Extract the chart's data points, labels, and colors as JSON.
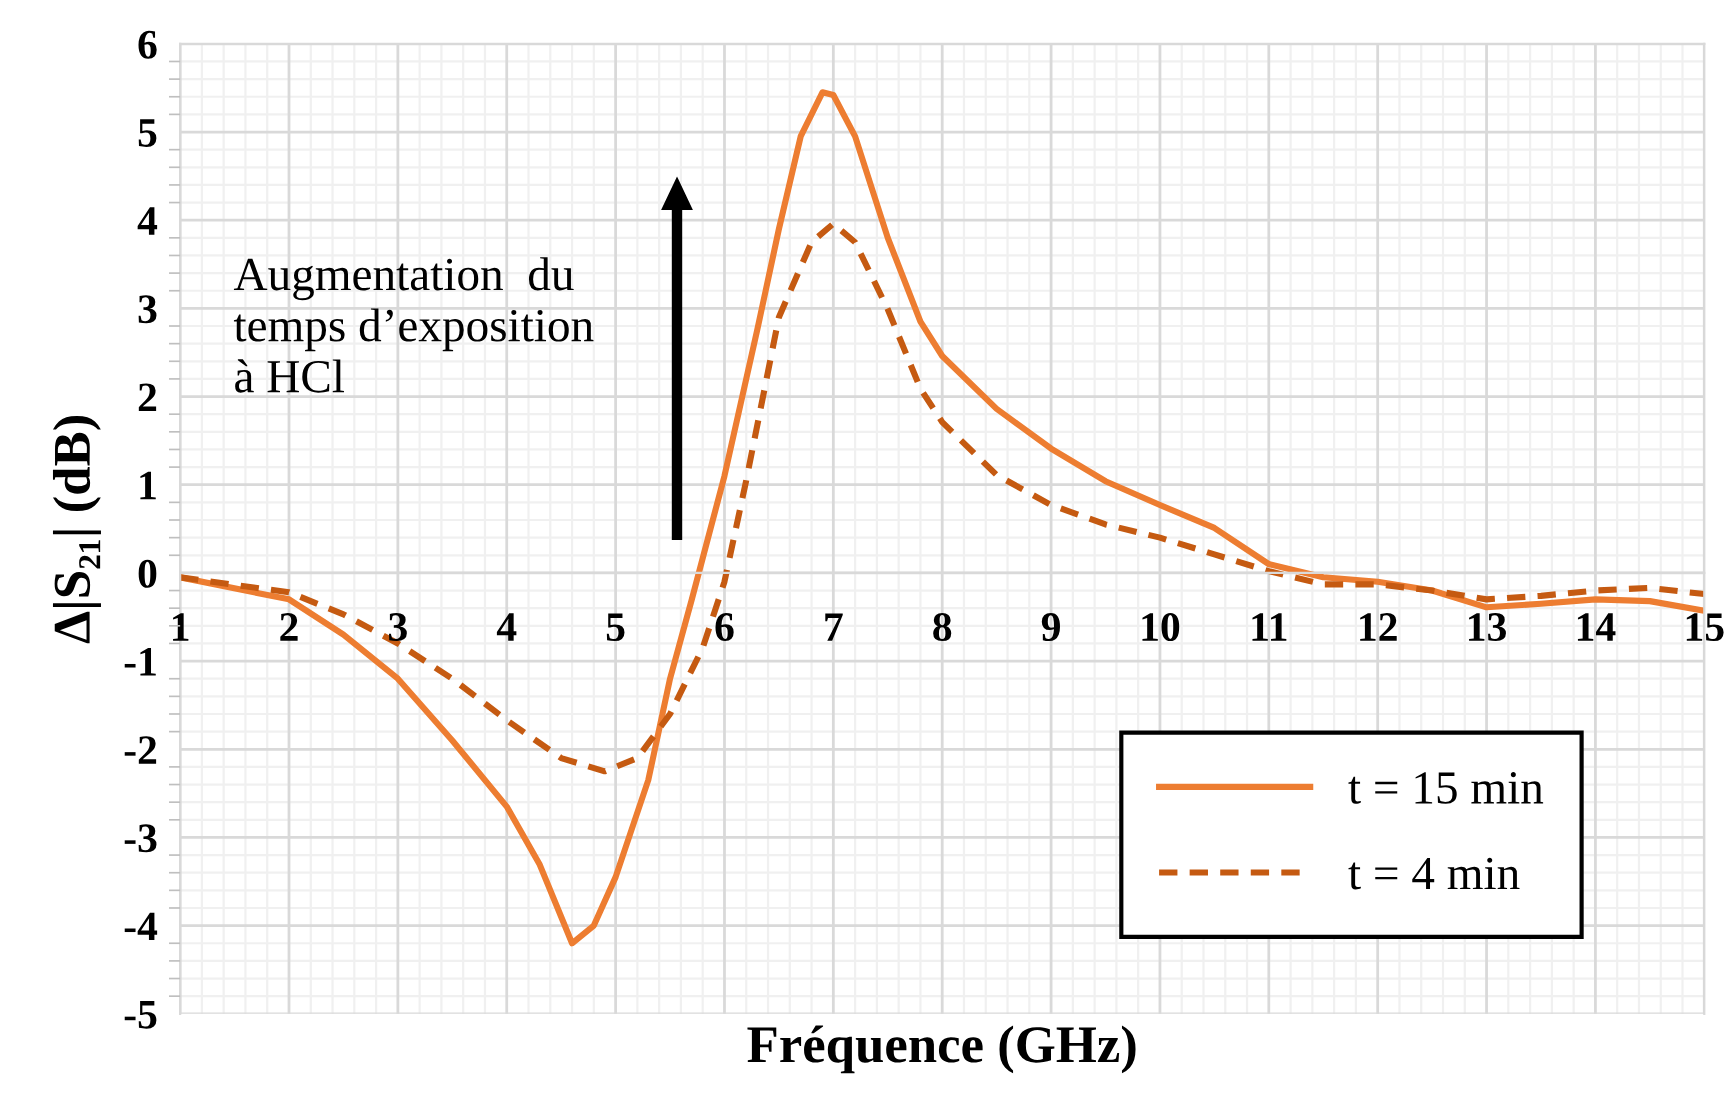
{
  "chart_data": {
    "type": "line",
    "xlabel": "Fréquence (GHz)",
    "ylabel": "Δ|S₂₁| (dB)",
    "xlim": [
      1,
      15
    ],
    "xticks": [
      1,
      2,
      3,
      4,
      5,
      6,
      7,
      8,
      9,
      10,
      11,
      12,
      13,
      14,
      15
    ],
    "ylim": [
      -5,
      6
    ],
    "yticks": [
      -5,
      -4,
      -3,
      -2,
      -1,
      0,
      1,
      2,
      3,
      4,
      5,
      6
    ],
    "grid": true,
    "legend": "bottom right",
    "marker": "none",
    "annotations": [
      "Augmentation  du\ntemps d’exposition\nà HCl"
    ],
    "series": [
      {
        "name": "t = 15 min",
        "color": "#ed7d31",
        "line_style": "solid",
        "x": [
          1,
          2,
          2.5,
          3,
          3.5,
          4,
          4.3,
          4.6,
          4.8,
          5,
          5.3,
          5.5,
          5.7,
          6,
          6.3,
          6.5,
          6.7,
          6.9,
          7,
          7.2,
          7.5,
          7.8,
          8,
          8.5,
          9,
          9.5,
          10,
          10.5,
          11,
          11.5,
          12,
          12.5,
          13,
          13.5,
          14,
          14.5,
          15
        ],
        "values": [
          -0.05,
          -0.3,
          -0.7,
          -1.2,
          -1.9,
          -2.65,
          -3.3,
          -4.2,
          -4.0,
          -3.45,
          -2.35,
          -1.2,
          -0.3,
          1.1,
          2.75,
          3.9,
          4.95,
          5.45,
          5.42,
          4.95,
          3.8,
          2.85,
          2.46,
          1.86,
          1.41,
          1.04,
          0.77,
          0.51,
          0.1,
          -0.05,
          -0.1,
          -0.2,
          -0.39,
          -0.35,
          -0.3,
          -0.32,
          -0.43
        ]
      },
      {
        "name": "t = 4 min",
        "color": "#c55a11",
        "line_style": "dashed",
        "x": [
          1,
          2,
          2.5,
          3,
          3.5,
          4,
          4.5,
          4.9,
          5.2,
          5.5,
          5.8,
          6,
          6.2,
          6.5,
          6.8,
          7,
          7.2,
          7.5,
          7.8,
          8,
          8.5,
          9,
          9.5,
          10,
          10.5,
          11,
          11.5,
          12,
          12.5,
          13,
          13.5,
          14,
          14.5,
          15
        ],
        "values": [
          -0.05,
          -0.22,
          -0.47,
          -0.8,
          -1.2,
          -1.67,
          -2.1,
          -2.25,
          -2.1,
          -1.6,
          -0.85,
          -0.1,
          1.05,
          2.9,
          3.75,
          3.96,
          3.75,
          2.99,
          2.09,
          1.71,
          1.11,
          0.77,
          0.55,
          0.4,
          0.21,
          0.02,
          -0.13,
          -0.13,
          -0.2,
          -0.3,
          -0.26,
          -0.2,
          -0.17,
          -0.24
        ]
      }
    ]
  }
}
